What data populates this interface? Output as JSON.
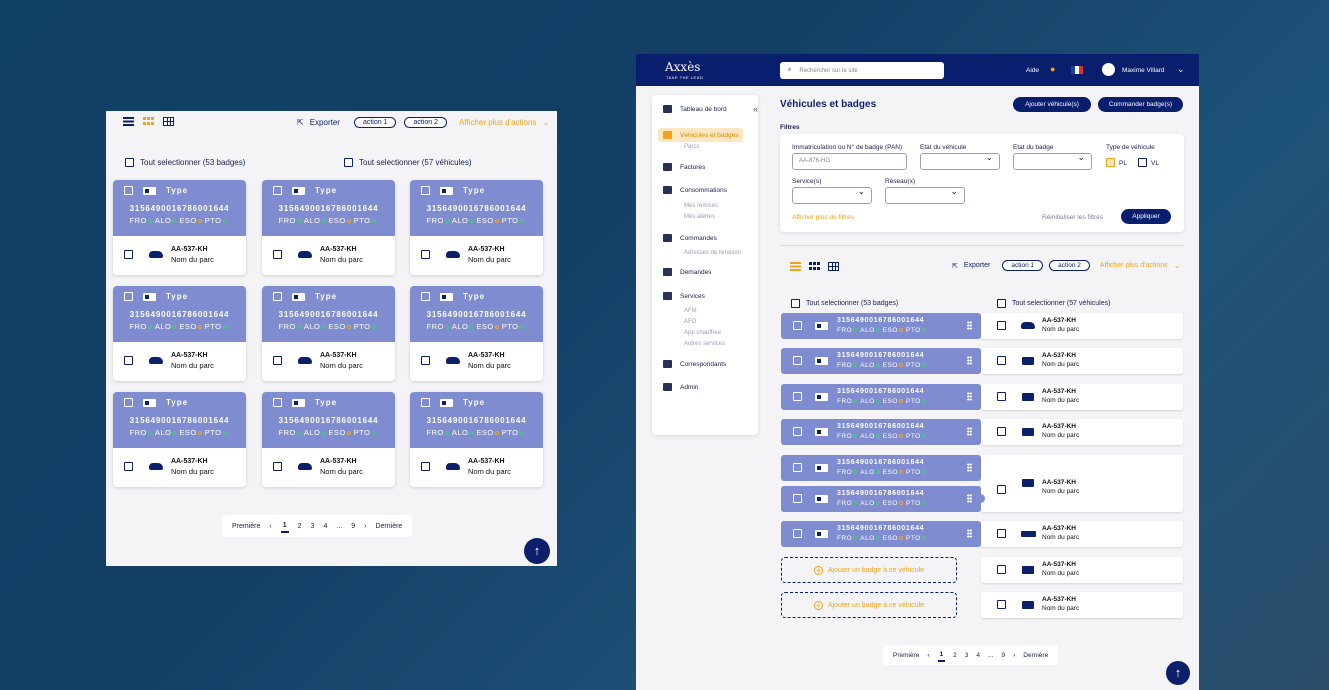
{
  "left_panel": {
    "actions": {
      "export": "Exporter",
      "action1": "action 1",
      "action2": "action 2",
      "more": "Afficher plus d'actions"
    },
    "select_badges": "Tout selectionner (53 badges)",
    "select_vehicles": "Tout selectionner (57 véhicules)",
    "card": {
      "type": "Type",
      "number": "3156490016786001644",
      "networks": [
        "FRO",
        "ALO",
        "ESO",
        "PTO"
      ],
      "plate": "AA-537-KH",
      "park": "Nom du parc"
    },
    "pagination": {
      "first": "Première",
      "pages": [
        "1",
        "2",
        "3",
        "4",
        "...",
        "9"
      ],
      "last": "Dernière",
      "current": "1"
    }
  },
  "header": {
    "logo": "Axxès",
    "tagline": "TAKE THE LEAD",
    "search_placeholder": "Rechercher sur le site",
    "help": "Aide",
    "user": "Maxime Villard"
  },
  "sidebar": {
    "items": [
      {
        "label": "Tableau de bord",
        "icon": "dashboard-icon"
      },
      {
        "label": "Véhicules et badges",
        "icon": "warning-icon",
        "active": true,
        "subs": [
          "Parcs"
        ]
      },
      {
        "label": "Factures",
        "icon": "euro-icon"
      },
      {
        "label": "Consommations",
        "icon": "list-icon",
        "subs": [
          "Mes remises",
          "Mes alertes"
        ]
      },
      {
        "label": "Commandes",
        "icon": "cart-icon",
        "subs": [
          "Adresses de livraison"
        ]
      },
      {
        "label": "Demandes",
        "icon": "alert-icon"
      },
      {
        "label": "Services",
        "icon": "puzzle-icon",
        "subs": [
          "AFM",
          "AFO",
          "App chauffeur",
          "Autres services"
        ]
      },
      {
        "label": "Correspondants",
        "icon": "users-icon"
      },
      {
        "label": "Admin",
        "icon": "gear-icon"
      }
    ]
  },
  "main": {
    "title": "Véhicules et badges",
    "add_vehicle": "Ajouter véhicule(s)",
    "order_badge": "Commander badge(s)",
    "filters": {
      "title": "Filtres",
      "plate_label": "Immatriculation ou N° de badge (PAN)",
      "plate_placeholder": "AA-876-HG",
      "vehicle_state": "Etat du véhicule",
      "badge_state": "Etat du badge",
      "vehicle_type": "Type de véhicule",
      "pl": "PL",
      "vl": "VL",
      "services": "Service(s)",
      "network": "Réseau(x)",
      "more_filters": "Afficher plus de filtres",
      "reset": "Réinitialiser les filtres",
      "apply": "Appliquer"
    },
    "actions": {
      "export": "Exporter",
      "action1": "action 1",
      "action2": "action 2",
      "more": "Afficher plus d'actions"
    },
    "select_badges": "Tout selectionner (53 badges)",
    "select_vehicles": "Tout selectionner (57 véhicules)",
    "badge_number": "3156490016786001644",
    "networks": [
      "FRO",
      "ALO",
      "ESO",
      "PTO"
    ],
    "plate": "AA-537-KH",
    "park": "Nom du parc",
    "add_badge": "Ajouter un badge à ce véhicule",
    "pagination": {
      "first": "Première",
      "pages": [
        "1",
        "2",
        "3",
        "4",
        "...",
        "9"
      ],
      "last": "Dernière",
      "current": "1"
    }
  },
  "colors": {
    "navy": "#0a1e6e",
    "accent": "#f2a31a",
    "card": "#7f8cd0"
  }
}
